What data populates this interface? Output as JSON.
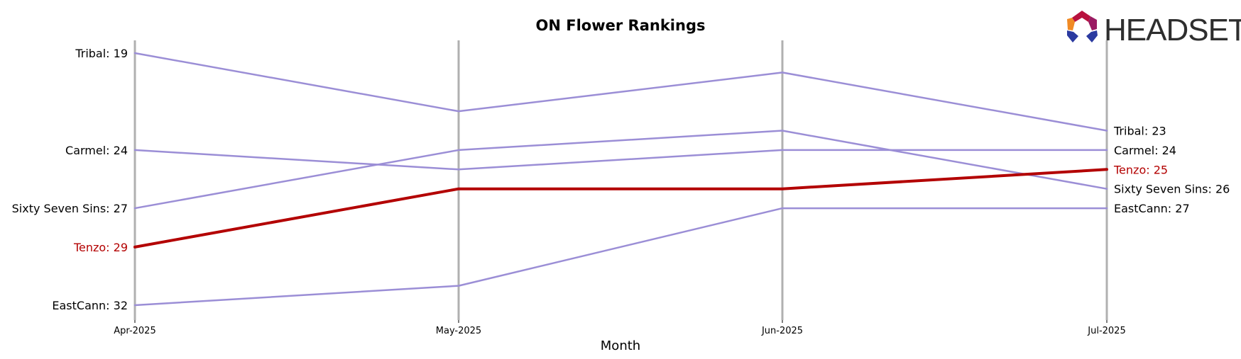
{
  "chart_data": {
    "type": "line",
    "title": "ON Flower Rankings",
    "xlabel": "Month",
    "ylabel": "",
    "x": [
      "Apr-2025",
      "May-2025",
      "Jun-2025",
      "Jul-2025"
    ],
    "y_axis": "rank, inverted (rank 1 at top)",
    "ylim": [
      33,
      18
    ],
    "grid": "vertical lines at each month",
    "series": [
      {
        "name": "Tribal",
        "values": [
          19,
          22,
          20,
          23
        ],
        "color": "#9b8ed6",
        "highlight": false,
        "start_label": "Tribal: 19",
        "end_label": "Tribal: 23"
      },
      {
        "name": "Carmel",
        "values": [
          24,
          25,
          24,
          24
        ],
        "color": "#9b8ed6",
        "highlight": false,
        "start_label": "Carmel: 24",
        "end_label": "Carmel: 24"
      },
      {
        "name": "Sixty Seven Sins",
        "values": [
          27,
          24,
          23,
          26
        ],
        "color": "#9b8ed6",
        "highlight": false,
        "start_label": "Sixty Seven Sins: 27",
        "end_label": "Sixty Seven Sins: 26"
      },
      {
        "name": "Tenzo",
        "values": [
          29,
          26,
          26,
          25
        ],
        "color": "#b30000",
        "highlight": true,
        "start_label": "Tenzo: 29",
        "end_label": "Tenzo: 25"
      },
      {
        "name": "EastCann",
        "values": [
          32,
          31,
          27,
          27
        ],
        "color": "#9b8ed6",
        "highlight": false,
        "start_label": "EastCann: 32",
        "end_label": "EastCann: 27"
      }
    ]
  },
  "logo": {
    "text": "HEADSET"
  },
  "colors": {
    "grid": "#b0b0b0",
    "muted_series": "#9b8ed6",
    "highlight_series": "#b30000",
    "logo_text": "#2e2e2e"
  }
}
